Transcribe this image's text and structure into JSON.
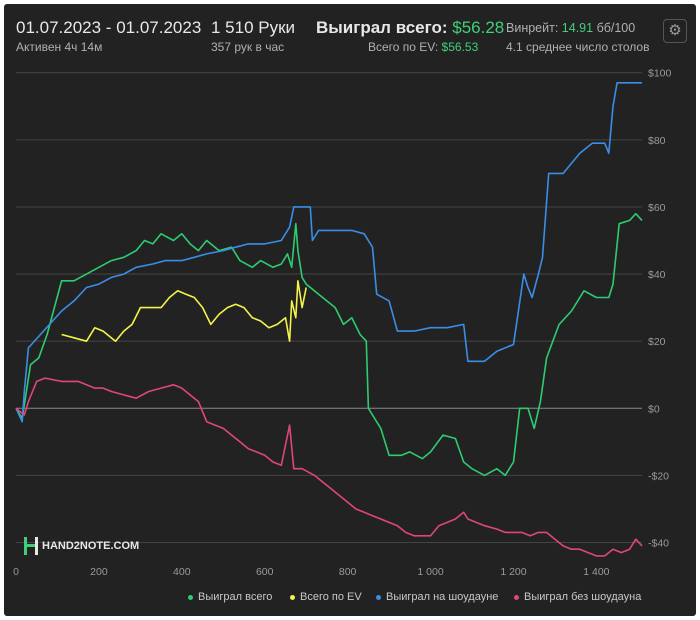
{
  "header": {
    "date_range": "01.07.2023 - 01.07.2023",
    "active": "Активен 4ч 14м",
    "hands": "1 510 Руки",
    "hands_per_hour": "357 рук в час",
    "won_label": "Выиграл всего:",
    "won_value": "$56.28",
    "ev_label": "Всего по EV:",
    "ev_value": "$56.53",
    "winrate_label": "Винрейт:",
    "winrate_value": "14.91",
    "winrate_unit": "бб/100",
    "tables": "4.1 среднее число столов"
  },
  "logo_text": "HAND2NOTE.COM",
  "icons": {
    "settings": "gear-icon"
  },
  "colors": {
    "background": "#222222",
    "total": "#2ecc71",
    "ev": "#f4f34a",
    "showdown": "#3a8ee6",
    "non_showdown": "#e0457b"
  },
  "chart_data": {
    "type": "line",
    "xlim": [
      0,
      1510
    ],
    "ylim": [
      -47,
      102
    ],
    "x_ticks": [
      0,
      200,
      400,
      600,
      800,
      1000,
      1200,
      1400
    ],
    "x_tick_labels": [
      "0",
      "200",
      "400",
      "600",
      "800",
      "1 000",
      "1 200",
      "1 400"
    ],
    "y_ticks": [
      100,
      80,
      60,
      40,
      20,
      0,
      -20,
      -40
    ],
    "y_tick_labels": [
      "$100",
      "$80",
      "$60",
      "$40",
      "$20",
      "$0",
      "-$20",
      "-$40"
    ],
    "grid": true,
    "legend_position": "bottom-right",
    "series": [
      {
        "name": "Выиграл всего",
        "color": "#2ecc71",
        "points": [
          [
            0,
            0
          ],
          [
            15,
            -3
          ],
          [
            25,
            5
          ],
          [
            35,
            13
          ],
          [
            55,
            15
          ],
          [
            75,
            22
          ],
          [
            110,
            38
          ],
          [
            140,
            38
          ],
          [
            170,
            40
          ],
          [
            200,
            42
          ],
          [
            230,
            44
          ],
          [
            260,
            45
          ],
          [
            290,
            47
          ],
          [
            310,
            50
          ],
          [
            330,
            49
          ],
          [
            350,
            52
          ],
          [
            380,
            50
          ],
          [
            400,
            52
          ],
          [
            420,
            49
          ],
          [
            440,
            47
          ],
          [
            460,
            50
          ],
          [
            490,
            47
          ],
          [
            520,
            48
          ],
          [
            540,
            44
          ],
          [
            570,
            42
          ],
          [
            590,
            44
          ],
          [
            620,
            42
          ],
          [
            640,
            43
          ],
          [
            655,
            46
          ],
          [
            665,
            42
          ],
          [
            675,
            55
          ],
          [
            680,
            47
          ],
          [
            690,
            39
          ],
          [
            700,
            37
          ],
          [
            730,
            34
          ],
          [
            770,
            30
          ],
          [
            790,
            25
          ],
          [
            810,
            27
          ],
          [
            830,
            22
          ],
          [
            845,
            20
          ],
          [
            850,
            0
          ],
          [
            860,
            -2
          ],
          [
            880,
            -6
          ],
          [
            900,
            -14
          ],
          [
            930,
            -14
          ],
          [
            950,
            -13
          ],
          [
            980,
            -15
          ],
          [
            1000,
            -13
          ],
          [
            1030,
            -8
          ],
          [
            1060,
            -9
          ],
          [
            1080,
            -16
          ],
          [
            1100,
            -18
          ],
          [
            1130,
            -20
          ],
          [
            1160,
            -18
          ],
          [
            1180,
            -20
          ],
          [
            1200,
            -16
          ],
          [
            1215,
            0
          ],
          [
            1235,
            0
          ],
          [
            1250,
            -6
          ],
          [
            1265,
            2
          ],
          [
            1280,
            15
          ],
          [
            1310,
            25
          ],
          [
            1340,
            29
          ],
          [
            1370,
            35
          ],
          [
            1400,
            33
          ],
          [
            1430,
            33
          ],
          [
            1440,
            37
          ],
          [
            1455,
            55
          ],
          [
            1480,
            56
          ],
          [
            1495,
            58
          ],
          [
            1510,
            56
          ]
        ]
      },
      {
        "name": "Всего по EV",
        "color": "#f4f34a",
        "points": [
          [
            110,
            22
          ],
          [
            140,
            21
          ],
          [
            170,
            20
          ],
          [
            190,
            24
          ],
          [
            210,
            23
          ],
          [
            240,
            20
          ],
          [
            260,
            23
          ],
          [
            280,
            25
          ],
          [
            300,
            30
          ],
          [
            320,
            30
          ],
          [
            350,
            30
          ],
          [
            370,
            33
          ],
          [
            390,
            35
          ],
          [
            410,
            34
          ],
          [
            430,
            33
          ],
          [
            450,
            30
          ],
          [
            470,
            25
          ],
          [
            490,
            28
          ],
          [
            510,
            30
          ],
          [
            530,
            31
          ],
          [
            550,
            30
          ],
          [
            570,
            27
          ],
          [
            590,
            26
          ],
          [
            610,
            24
          ],
          [
            630,
            25
          ],
          [
            650,
            27
          ],
          [
            660,
            20
          ],
          [
            665,
            32
          ],
          [
            675,
            27
          ],
          [
            680,
            38
          ],
          [
            690,
            30
          ],
          [
            700,
            36
          ]
        ]
      },
      {
        "name": "Выиграл на шоудауне",
        "color": "#3a8ee6",
        "points": [
          [
            0,
            0
          ],
          [
            15,
            -4
          ],
          [
            20,
            5
          ],
          [
            30,
            18
          ],
          [
            110,
            29
          ],
          [
            140,
            32
          ],
          [
            170,
            36
          ],
          [
            200,
            37
          ],
          [
            230,
            39
          ],
          [
            260,
            40
          ],
          [
            290,
            42
          ],
          [
            330,
            43
          ],
          [
            360,
            44
          ],
          [
            400,
            44
          ],
          [
            430,
            45
          ],
          [
            460,
            46
          ],
          [
            500,
            47
          ],
          [
            530,
            48
          ],
          [
            560,
            49
          ],
          [
            600,
            49
          ],
          [
            640,
            50
          ],
          [
            660,
            54
          ],
          [
            670,
            60
          ],
          [
            710,
            60
          ],
          [
            715,
            50
          ],
          [
            730,
            53
          ],
          [
            760,
            53
          ],
          [
            790,
            53
          ],
          [
            810,
            53
          ],
          [
            840,
            52
          ],
          [
            860,
            48
          ],
          [
            870,
            34
          ],
          [
            900,
            32
          ],
          [
            920,
            23
          ],
          [
            960,
            23
          ],
          [
            1000,
            24
          ],
          [
            1040,
            24
          ],
          [
            1080,
            25
          ],
          [
            1090,
            14
          ],
          [
            1130,
            14
          ],
          [
            1160,
            17
          ],
          [
            1200,
            19
          ],
          [
            1225,
            40
          ],
          [
            1235,
            36
          ],
          [
            1245,
            33
          ],
          [
            1260,
            40
          ],
          [
            1270,
            45
          ],
          [
            1285,
            70
          ],
          [
            1320,
            70
          ],
          [
            1340,
            73
          ],
          [
            1360,
            76
          ],
          [
            1390,
            79
          ],
          [
            1420,
            79
          ],
          [
            1430,
            76
          ],
          [
            1440,
            90
          ],
          [
            1450,
            97
          ],
          [
            1490,
            97
          ],
          [
            1510,
            97
          ]
        ]
      },
      {
        "name": "Выиграл без шоудауна",
        "color": "#e0457b",
        "points": [
          [
            0,
            0
          ],
          [
            20,
            -2
          ],
          [
            30,
            2
          ],
          [
            50,
            8
          ],
          [
            70,
            9
          ],
          [
            110,
            8
          ],
          [
            150,
            8
          ],
          [
            170,
            7
          ],
          [
            190,
            6
          ],
          [
            210,
            6
          ],
          [
            230,
            5
          ],
          [
            260,
            4
          ],
          [
            290,
            3
          ],
          [
            320,
            5
          ],
          [
            350,
            6
          ],
          [
            380,
            7
          ],
          [
            400,
            6
          ],
          [
            420,
            4
          ],
          [
            440,
            2
          ],
          [
            460,
            -4
          ],
          [
            480,
            -5
          ],
          [
            500,
            -6
          ],
          [
            520,
            -8
          ],
          [
            540,
            -10
          ],
          [
            560,
            -12
          ],
          [
            580,
            -13
          ],
          [
            600,
            -14
          ],
          [
            620,
            -16
          ],
          [
            640,
            -17
          ],
          [
            660,
            -5
          ],
          [
            670,
            -18
          ],
          [
            690,
            -18
          ],
          [
            720,
            -20
          ],
          [
            740,
            -22
          ],
          [
            760,
            -24
          ],
          [
            780,
            -26
          ],
          [
            800,
            -28
          ],
          [
            820,
            -30
          ],
          [
            840,
            -31
          ],
          [
            860,
            -32
          ],
          [
            880,
            -33
          ],
          [
            900,
            -34
          ],
          [
            920,
            -35
          ],
          [
            940,
            -37
          ],
          [
            960,
            -38
          ],
          [
            980,
            -38
          ],
          [
            1000,
            -38
          ],
          [
            1020,
            -35
          ],
          [
            1040,
            -34
          ],
          [
            1060,
            -33
          ],
          [
            1080,
            -31
          ],
          [
            1090,
            -33
          ],
          [
            1110,
            -34
          ],
          [
            1130,
            -35
          ],
          [
            1160,
            -36
          ],
          [
            1180,
            -37
          ],
          [
            1200,
            -37
          ],
          [
            1220,
            -37
          ],
          [
            1240,
            -38
          ],
          [
            1260,
            -37
          ],
          [
            1280,
            -37
          ],
          [
            1300,
            -39
          ],
          [
            1320,
            -41
          ],
          [
            1340,
            -42
          ],
          [
            1360,
            -42
          ],
          [
            1380,
            -43
          ],
          [
            1400,
            -44
          ],
          [
            1420,
            -44
          ],
          [
            1440,
            -42
          ],
          [
            1460,
            -43
          ],
          [
            1480,
            -42
          ],
          [
            1495,
            -39
          ],
          [
            1510,
            -41
          ]
        ]
      }
    ]
  }
}
